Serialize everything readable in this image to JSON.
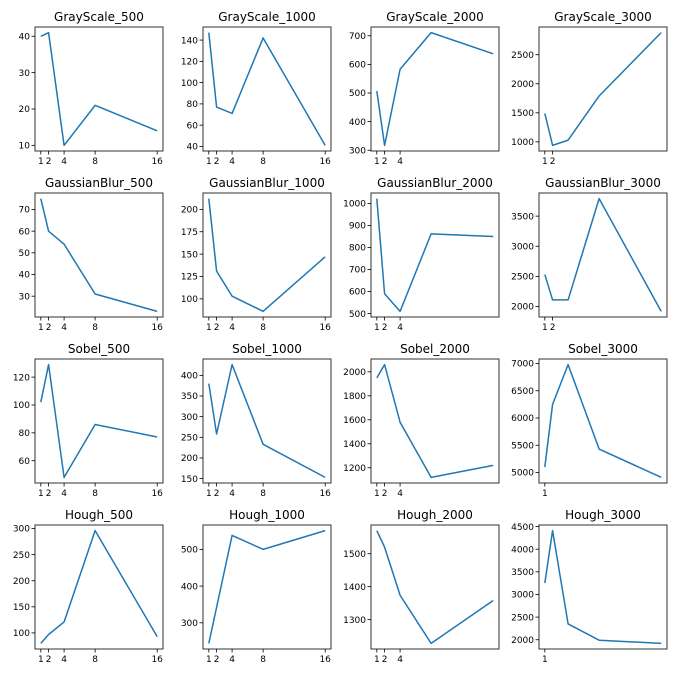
{
  "figure": {
    "line_color": "#1f77b4",
    "background": "#ffffff"
  },
  "chart_data": [
    {
      "type": "line",
      "title": "GrayScale_500",
      "x": [
        1,
        2,
        4,
        8,
        16
      ],
      "y": [
        40,
        41,
        10,
        21,
        14
      ],
      "xticks": [
        1,
        2,
        4,
        8,
        16
      ],
      "yticks": [
        10,
        20,
        30,
        40
      ],
      "xlim": [
        0.25,
        16.75
      ],
      "ylim": [
        8.45,
        42.55
      ]
    },
    {
      "type": "line",
      "title": "GrayScale_1000",
      "x": [
        1,
        2,
        4,
        8,
        16
      ],
      "y": [
        147,
        77,
        71,
        142,
        41
      ],
      "xticks": [
        1,
        2,
        4,
        8,
        16
      ],
      "yticks": [
        40,
        60,
        80,
        100,
        120,
        140
      ],
      "xlim": [
        0.25,
        16.75
      ],
      "ylim": [
        35.7,
        152.3
      ]
    },
    {
      "type": "line",
      "title": "GrayScale_2000",
      "x": [
        1,
        2,
        4,
        8,
        16
      ],
      "y": [
        507,
        317,
        583,
        711,
        637
      ],
      "xticks": [
        1,
        2,
        4
      ],
      "yticks": [
        300,
        400,
        500,
        600,
        700
      ],
      "xlim": [
        0.25,
        16.75
      ],
      "ylim": [
        297.3,
        730.7
      ]
    },
    {
      "type": "line",
      "title": "GrayScale_3000",
      "x": [
        1,
        2,
        4,
        8,
        16
      ],
      "y": [
        1490,
        940,
        1030,
        1790,
        2880
      ],
      "xticks": [
        1,
        2
      ],
      "yticks": [
        1000,
        1500,
        2000,
        2500
      ],
      "xlim": [
        0.25,
        16.75
      ],
      "ylim": [
        843,
        2977
      ]
    },
    {
      "type": "line",
      "title": "GaussianBlur_500",
      "x": [
        1,
        2,
        4,
        8,
        16
      ],
      "y": [
        75,
        60,
        54,
        31,
        23
      ],
      "xticks": [
        1,
        2,
        4,
        8,
        16
      ],
      "yticks": [
        30,
        40,
        50,
        60,
        70
      ],
      "xlim": [
        0.25,
        16.75
      ],
      "ylim": [
        20.4,
        77.6
      ]
    },
    {
      "type": "line",
      "title": "GaussianBlur_1000",
      "x": [
        1,
        2,
        4,
        8,
        16
      ],
      "y": [
        212,
        131,
        103,
        86,
        147
      ],
      "xticks": [
        1,
        2,
        4,
        8,
        16
      ],
      "yticks": [
        100,
        125,
        150,
        175,
        200
      ],
      "xlim": [
        0.25,
        16.75
      ],
      "ylim": [
        79.7,
        218.3
      ]
    },
    {
      "type": "line",
      "title": "GaussianBlur_2000",
      "x": [
        1,
        2,
        4,
        8,
        16
      ],
      "y": [
        1022,
        590,
        510,
        862,
        850
      ],
      "xticks": [
        1,
        2,
        4
      ],
      "yticks": [
        500,
        600,
        700,
        800,
        900,
        1000
      ],
      "xlim": [
        0.25,
        16.75
      ],
      "ylim": [
        484.4,
        1047.6
      ]
    },
    {
      "type": "line",
      "title": "GaussianBlur_3000",
      "x": [
        1,
        2,
        4,
        8,
        16
      ],
      "y": [
        2530,
        2110,
        2110,
        3790,
        1920
      ],
      "xticks": [
        1,
        2
      ],
      "yticks": [
        2000,
        2500,
        3000,
        3500
      ],
      "xlim": [
        0.25,
        16.75
      ],
      "ylim": [
        1826.5,
        3883.5
      ]
    },
    {
      "type": "line",
      "title": "Sobel_500",
      "x": [
        1,
        2,
        4,
        8,
        16
      ],
      "y": [
        102,
        129,
        48,
        86,
        77
      ],
      "xticks": [
        1,
        2,
        4,
        8,
        16
      ],
      "yticks": [
        60,
        80,
        100,
        120
      ],
      "xlim": [
        0.25,
        16.75
      ],
      "ylim": [
        44,
        133
      ]
    },
    {
      "type": "line",
      "title": "Sobel_1000",
      "x": [
        1,
        2,
        4,
        8,
        16
      ],
      "y": [
        380,
        258,
        426,
        233,
        153
      ],
      "xticks": [
        1,
        2,
        4,
        8,
        16
      ],
      "yticks": [
        150,
        200,
        250,
        300,
        350,
        400
      ],
      "xlim": [
        0.25,
        16.75
      ],
      "ylim": [
        139.35,
        439.65
      ]
    },
    {
      "type": "line",
      "title": "Sobel_2000",
      "x": [
        1,
        2,
        4,
        8,
        16
      ],
      "y": [
        1950,
        2060,
        1580,
        1120,
        1220
      ],
      "xticks": [
        1,
        2,
        4
      ],
      "yticks": [
        1200,
        1400,
        1600,
        1800,
        2000
      ],
      "xlim": [
        0.25,
        16.75
      ],
      "ylim": [
        1073,
        2107
      ]
    },
    {
      "type": "line",
      "title": "Sobel_3000",
      "x": [
        1,
        2,
        4,
        8,
        16
      ],
      "y": [
        5100,
        6250,
        6980,
        5430,
        4910
      ],
      "xticks": [
        1
      ],
      "yticks": [
        5000,
        5500,
        6000,
        6500,
        7000
      ],
      "xlim": [
        0.25,
        16.75
      ],
      "ylim": [
        4806.5,
        7083.5
      ]
    },
    {
      "type": "line",
      "title": "Hough_500",
      "x": [
        1,
        2,
        4,
        8,
        16
      ],
      "y": [
        80,
        97,
        121,
        296,
        93
      ],
      "xticks": [
        1,
        2,
        4,
        8,
        16
      ],
      "yticks": [
        100,
        150,
        200,
        250,
        300
      ],
      "xlim": [
        0.25,
        16.75
      ],
      "ylim": [
        69.2,
        306.8
      ]
    },
    {
      "type": "line",
      "title": "Hough_1000",
      "x": [
        1,
        2,
        4,
        8,
        16
      ],
      "y": [
        244,
        342,
        538,
        500,
        551
      ],
      "xticks": [
        1,
        2,
        4,
        8,
        16
      ],
      "yticks": [
        300,
        400,
        500
      ],
      "xlim": [
        0.25,
        16.75
      ],
      "ylim": [
        228.65,
        566.35
      ]
    },
    {
      "type": "line",
      "title": "Hough_2000",
      "x": [
        1,
        2,
        4,
        8,
        16
      ],
      "y": [
        1570,
        1520,
        1374,
        1228,
        1358
      ],
      "xticks": [
        1,
        2,
        4
      ],
      "yticks": [
        1300,
        1400,
        1500
      ],
      "xlim": [
        0.25,
        16.75
      ],
      "ylim": [
        1210.9,
        1587.1
      ]
    },
    {
      "type": "line",
      "title": "Hough_3000",
      "x": [
        1,
        2,
        4,
        8,
        16
      ],
      "y": [
        3250,
        4410,
        2350,
        1990,
        1920
      ],
      "xticks": [
        1
      ],
      "yticks": [
        2000,
        2500,
        3000,
        3500,
        4000,
        4500
      ],
      "xlim": [
        0.25,
        16.75
      ],
      "ylim": [
        1795.5,
        4534.5
      ]
    }
  ]
}
